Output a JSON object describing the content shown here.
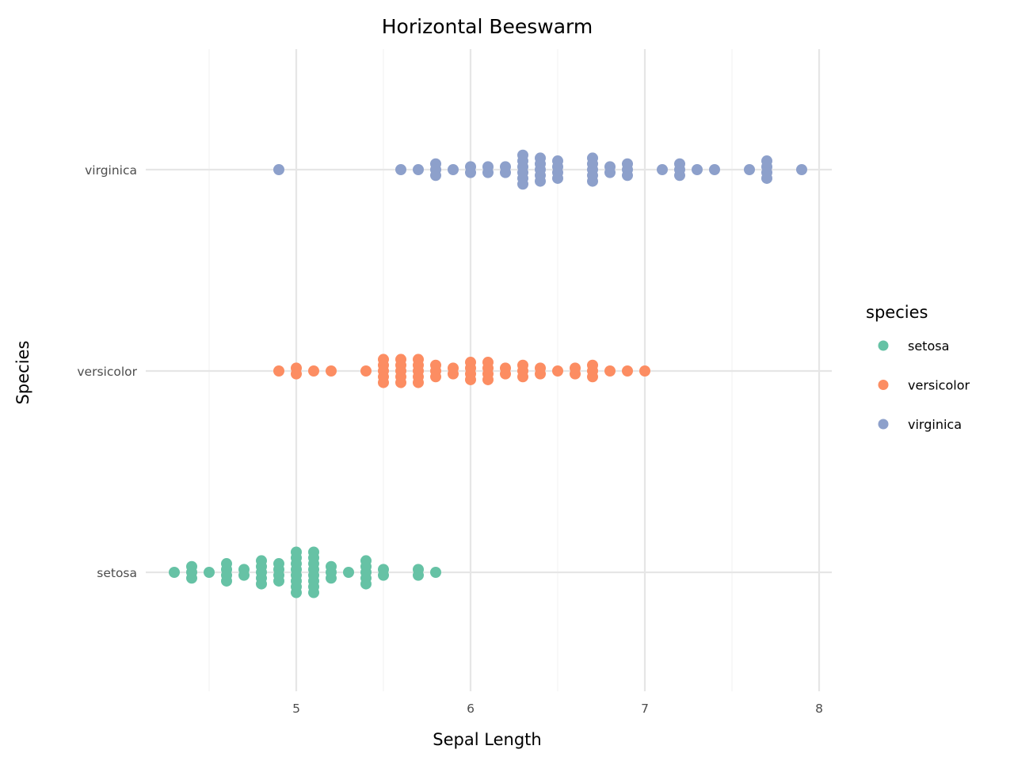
{
  "chart_data": {
    "type": "scatter",
    "subtype": "beeswarm",
    "title": "Horizontal Beeswarm",
    "xlabel": "Sepal Length",
    "ylabel": "Species",
    "xlim": [
      4.2,
      8.08
    ],
    "x_ticks": [
      5,
      6,
      7,
      8
    ],
    "categories": [
      "setosa",
      "versicolor",
      "virginica"
    ],
    "grid": true,
    "legend": {
      "title": "species",
      "position": "right",
      "entries": [
        "setosa",
        "versicolor",
        "virginica"
      ]
    },
    "colors": {
      "setosa": "#66c2a5",
      "versicolor": "#fc8d62",
      "virginica": "#8da0cb"
    },
    "series": [
      {
        "name": "setosa",
        "counts": {
          "4.3": 1,
          "4.4": 3,
          "4.5": 1,
          "4.6": 4,
          "4.7": 2,
          "4.8": 5,
          "4.9": 4,
          "5.0": 8,
          "5.1": 8,
          "5.2": 3,
          "5.3": 1,
          "5.4": 5,
          "5.5": 2,
          "5.7": 2,
          "5.8": 1
        }
      },
      {
        "name": "versicolor",
        "counts": {
          "4.9": 1,
          "5.0": 2,
          "5.1": 1,
          "5.2": 1,
          "5.4": 1,
          "5.5": 5,
          "5.6": 5,
          "5.7": 5,
          "5.8": 3,
          "5.9": 2,
          "6.0": 4,
          "6.1": 4,
          "6.2": 2,
          "6.3": 3,
          "6.4": 2,
          "6.5": 1,
          "6.6": 2,
          "6.7": 3,
          "6.8": 1,
          "6.9": 1,
          "7.0": 1
        }
      },
      {
        "name": "virginica",
        "counts": {
          "4.9": 1,
          "5.6": 1,
          "5.7": 1,
          "5.8": 3,
          "5.9": 1,
          "6.0": 2,
          "6.1": 2,
          "6.2": 2,
          "6.3": 6,
          "6.4": 5,
          "6.5": 4,
          "6.7": 5,
          "6.8": 2,
          "6.9": 3,
          "7.1": 1,
          "7.2": 3,
          "7.3": 1,
          "7.4": 1,
          "7.6": 1,
          "7.7": 4,
          "7.9": 1
        }
      }
    ]
  }
}
